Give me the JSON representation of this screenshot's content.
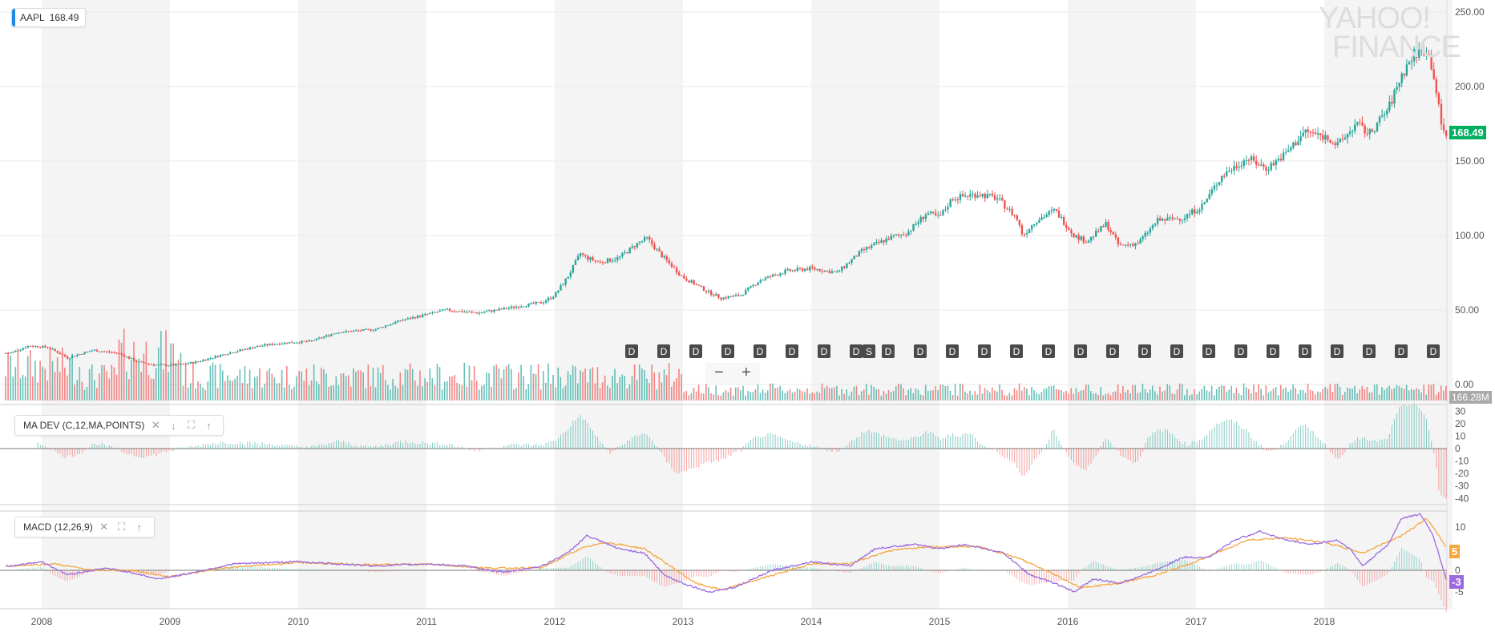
{
  "ticker": {
    "symbol": "AAPL",
    "price": "168.49"
  },
  "logo": {
    "line1": "YAHOO!",
    "line2": "FINANCE"
  },
  "last_price_label": "168.49",
  "volume_label": "166.28M",
  "zoom": {
    "minus": "−",
    "plus": "+"
  },
  "indicators": {
    "madev": {
      "label": "MA DEV (C,12,MA,POINTS)",
      "last_value_label": ""
    },
    "macd": {
      "label": "MACD (12,26,9)",
      "signal_label": "5",
      "macd_label": "-3"
    }
  },
  "colors": {
    "up": "#26a69a",
    "down": "#ef5350",
    "macd_line": "#9c6ade",
    "signal_line": "#f5a742",
    "price_badge": "#00b061",
    "volume_badge": "#a9a9a9",
    "band": "#f4f4f4"
  },
  "icons": [
    "close-icon",
    "arrow-down-icon",
    "expand-icon",
    "arrow-up-icon"
  ],
  "chart_data": {
    "type": "candlestick",
    "title": "",
    "x_axis": {
      "tick_labels": [
        "2008",
        "2009",
        "2010",
        "2011",
        "2012",
        "2013",
        "2014",
        "2015",
        "2016",
        "2017",
        "2018"
      ]
    },
    "price_axis": {
      "tick_labels": [
        "250.00",
        "200.00",
        "150.00",
        "100.00",
        "50.00",
        "0.00"
      ],
      "range": [
        0,
        250
      ]
    },
    "price_anchors": [
      [
        2007.75,
        21
      ],
      [
        2007.9,
        26
      ],
      [
        2008.05,
        25
      ],
      [
        2008.2,
        18
      ],
      [
        2008.4,
        23
      ],
      [
        2008.6,
        21
      ],
      [
        2008.75,
        15
      ],
      [
        2008.9,
        13
      ],
      [
        2009.05,
        13
      ],
      [
        2009.2,
        15
      ],
      [
        2009.45,
        21
      ],
      [
        2009.7,
        26
      ],
      [
        2009.9,
        28
      ],
      [
        2010.1,
        29
      ],
      [
        2010.3,
        35
      ],
      [
        2010.45,
        36
      ],
      [
        2010.6,
        37
      ],
      [
        2010.8,
        43
      ],
      [
        2011.0,
        47
      ],
      [
        2011.15,
        50
      ],
      [
        2011.4,
        48
      ],
      [
        2011.55,
        50
      ],
      [
        2011.75,
        53
      ],
      [
        2011.9,
        55
      ],
      [
        2012.0,
        60
      ],
      [
        2012.1,
        72
      ],
      [
        2012.2,
        88
      ],
      [
        2012.25,
        85
      ],
      [
        2012.35,
        82
      ],
      [
        2012.5,
        85
      ],
      [
        2012.65,
        95
      ],
      [
        2012.72,
        98
      ],
      [
        2012.85,
        85
      ],
      [
        2013.0,
        72
      ],
      [
        2013.2,
        62
      ],
      [
        2013.3,
        58
      ],
      [
        2013.45,
        60
      ],
      [
        2013.6,
        70
      ],
      [
        2013.8,
        76
      ],
      [
        2014.0,
        78
      ],
      [
        2014.2,
        75
      ],
      [
        2014.4,
        90
      ],
      [
        2014.6,
        98
      ],
      [
        2014.75,
        102
      ],
      [
        2014.9,
        115
      ],
      [
        2015.0,
        112
      ],
      [
        2015.1,
        125
      ],
      [
        2015.3,
        128
      ],
      [
        2015.45,
        125
      ],
      [
        2015.6,
        112
      ],
      [
        2015.65,
        100
      ],
      [
        2015.75,
        110
      ],
      [
        2015.9,
        117
      ],
      [
        2016.05,
        100
      ],
      [
        2016.15,
        96
      ],
      [
        2016.3,
        108
      ],
      [
        2016.4,
        93
      ],
      [
        2016.55,
        95
      ],
      [
        2016.7,
        110
      ],
      [
        2016.9,
        112
      ],
      [
        2017.05,
        120
      ],
      [
        2017.2,
        140
      ],
      [
        2017.4,
        152
      ],
      [
        2017.55,
        145
      ],
      [
        2017.7,
        155
      ],
      [
        2017.85,
        170
      ],
      [
        2018.05,
        165
      ],
      [
        2018.1,
        160
      ],
      [
        2018.25,
        175
      ],
      [
        2018.35,
        168
      ],
      [
        2018.5,
        185
      ],
      [
        2018.6,
        207
      ],
      [
        2018.7,
        222
      ],
      [
        2018.8,
        225
      ],
      [
        2018.85,
        210
      ],
      [
        2018.92,
        170
      ],
      [
        2018.96,
        168.49
      ]
    ],
    "dividend_markers": [
      "D",
      "D",
      "D",
      "D",
      "D",
      "D",
      "D",
      "D",
      "S",
      "D",
      "D",
      "D",
      "D",
      "D",
      "D",
      "D",
      "D",
      "D",
      "D",
      "D",
      "D",
      "D",
      "D",
      "D",
      "D",
      "D",
      "D"
    ],
    "madev": {
      "axis_tick_labels": [
        "30",
        "20",
        "10",
        "0",
        "-10",
        "-20",
        "-30",
        "-40"
      ]
    },
    "macd": {
      "axis_tick_labels": [
        "10",
        "5",
        "0",
        "-5"
      ],
      "macd_anchors": [
        [
          2007.75,
          1
        ],
        [
          2008.0,
          2
        ],
        [
          2008.2,
          -1
        ],
        [
          2008.5,
          0.5
        ],
        [
          2008.7,
          -0.5
        ],
        [
          2008.9,
          -2
        ],
        [
          2009.1,
          -1
        ],
        [
          2009.5,
          1.5
        ],
        [
          2010.0,
          2
        ],
        [
          2010.3,
          1.5
        ],
        [
          2010.6,
          1
        ],
        [
          2011.0,
          1.5
        ],
        [
          2011.3,
          1
        ],
        [
          2011.6,
          -0.5
        ],
        [
          2011.9,
          1
        ],
        [
          2012.1,
          4
        ],
        [
          2012.25,
          8
        ],
        [
          2012.5,
          5
        ],
        [
          2012.7,
          4
        ],
        [
          2012.85,
          -1
        ],
        [
          2013.0,
          -3
        ],
        [
          2013.2,
          -5
        ],
        [
          2013.4,
          -4
        ],
        [
          2013.7,
          0
        ],
        [
          2014.0,
          2
        ],
        [
          2014.3,
          1
        ],
        [
          2014.5,
          5
        ],
        [
          2014.8,
          6
        ],
        [
          2015.0,
          5
        ],
        [
          2015.2,
          6
        ],
        [
          2015.5,
          4
        ],
        [
          2015.7,
          -1
        ],
        [
          2015.9,
          -3
        ],
        [
          2016.05,
          -5
        ],
        [
          2016.2,
          -2
        ],
        [
          2016.4,
          -3
        ],
        [
          2016.6,
          -1
        ],
        [
          2016.9,
          3
        ],
        [
          2017.1,
          3
        ],
        [
          2017.3,
          7
        ],
        [
          2017.5,
          9
        ],
        [
          2017.7,
          7
        ],
        [
          2017.9,
          6
        ],
        [
          2018.1,
          7
        ],
        [
          2018.2,
          5
        ],
        [
          2018.3,
          1
        ],
        [
          2018.5,
          6
        ],
        [
          2018.6,
          12
        ],
        [
          2018.75,
          13
        ],
        [
          2018.85,
          8
        ],
        [
          2018.96,
          -3
        ]
      ],
      "signal_anchors": [
        [
          2007.75,
          1
        ],
        [
          2008.1,
          1.5
        ],
        [
          2008.4,
          0
        ],
        [
          2008.7,
          0
        ],
        [
          2009.0,
          -1.5
        ],
        [
          2009.4,
          0.5
        ],
        [
          2010.0,
          1.8
        ],
        [
          2010.5,
          1.3
        ],
        [
          2011.0,
          1.4
        ],
        [
          2011.5,
          0.5
        ],
        [
          2011.9,
          0.6
        ],
        [
          2012.2,
          5
        ],
        [
          2012.4,
          6.5
        ],
        [
          2012.7,
          5
        ],
        [
          2012.9,
          1
        ],
        [
          2013.1,
          -3
        ],
        [
          2013.3,
          -4.5
        ],
        [
          2013.6,
          -2
        ],
        [
          2014.0,
          1.5
        ],
        [
          2014.3,
          1.5
        ],
        [
          2014.6,
          4.5
        ],
        [
          2014.9,
          5.5
        ],
        [
          2015.3,
          5.5
        ],
        [
          2015.6,
          3
        ],
        [
          2015.9,
          -1
        ],
        [
          2016.1,
          -4
        ],
        [
          2016.4,
          -3
        ],
        [
          2016.7,
          -1
        ],
        [
          2017.0,
          2
        ],
        [
          2017.4,
          7
        ],
        [
          2017.7,
          7.5
        ],
        [
          2018.0,
          6.5
        ],
        [
          2018.3,
          4
        ],
        [
          2018.6,
          8
        ],
        [
          2018.8,
          12
        ],
        [
          2018.96,
          5
        ]
      ]
    }
  }
}
